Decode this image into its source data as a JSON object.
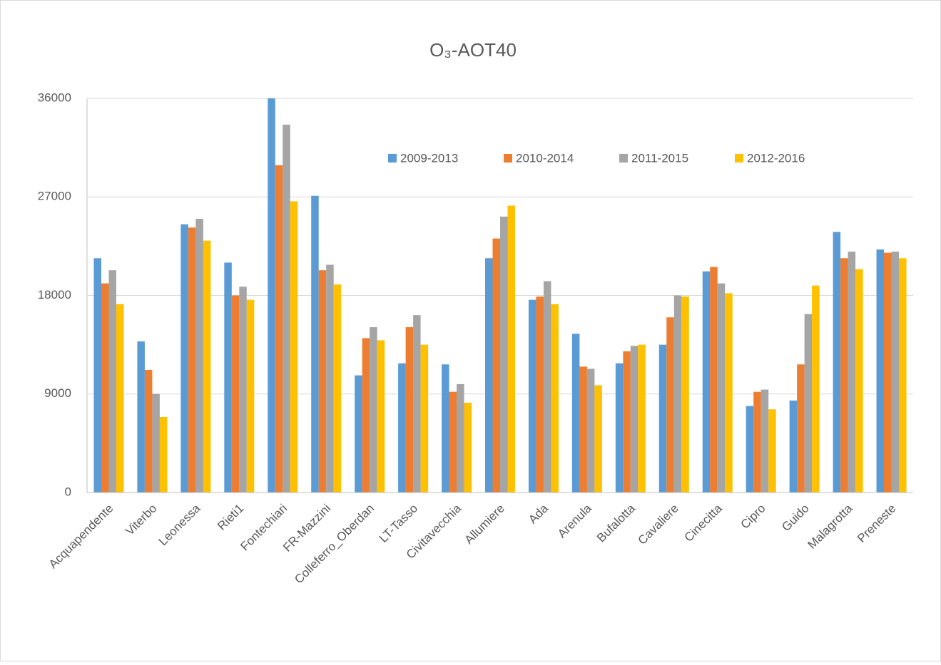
{
  "chart_data": {
    "type": "bar",
    "title": "O₃-AOT40",
    "categories": [
      "Acquapendente",
      "Viterbo",
      "Leonessa",
      "Rieti1",
      "Fontechiari",
      "FR-Mazzini",
      "Colleferro_Oberdan",
      "LT-Tasso",
      "Civitavecchia",
      "Allumiere",
      "Ada",
      "Arenula",
      "Bufalotta",
      "Cavaliere",
      "Cinecitta",
      "Cipro",
      "Guido",
      "Malagrotta",
      "Preneste"
    ],
    "series": [
      {
        "name": "2009-2013",
        "color": "#5b9bd5",
        "values": [
          21400,
          13800,
          24500,
          21000,
          36000,
          27100,
          10700,
          11800,
          11700,
          21400,
          17600,
          14500,
          11800,
          13500,
          20200,
          7900,
          8400,
          23800,
          22200
        ]
      },
      {
        "name": "2010-2014",
        "color": "#ed7d31",
        "values": [
          19100,
          11200,
          24200,
          18000,
          29900,
          20300,
          14100,
          15100,
          9200,
          23200,
          17900,
          11500,
          12900,
          16000,
          20600,
          9200,
          11700,
          21400,
          21900
        ]
      },
      {
        "name": "2011-2015",
        "color": "#a5a5a5",
        "values": [
          20300,
          9000,
          25000,
          18800,
          33600,
          20800,
          15100,
          16200,
          9900,
          25200,
          19300,
          11300,
          13400,
          18000,
          19100,
          9400,
          16300,
          22000,
          22000
        ]
      },
      {
        "name": "2012-2016",
        "color": "#ffc000",
        "values": [
          17200,
          6900,
          23000,
          17600,
          26600,
          19000,
          13900,
          13500,
          8200,
          26200,
          17200,
          9800,
          13500,
          17900,
          18200,
          7600,
          18900,
          20400,
          21400
        ]
      }
    ],
    "ylim": [
      0,
      36000
    ],
    "yticks": [
      0,
      9000,
      18000,
      27000,
      36000
    ],
    "grid": true
  }
}
